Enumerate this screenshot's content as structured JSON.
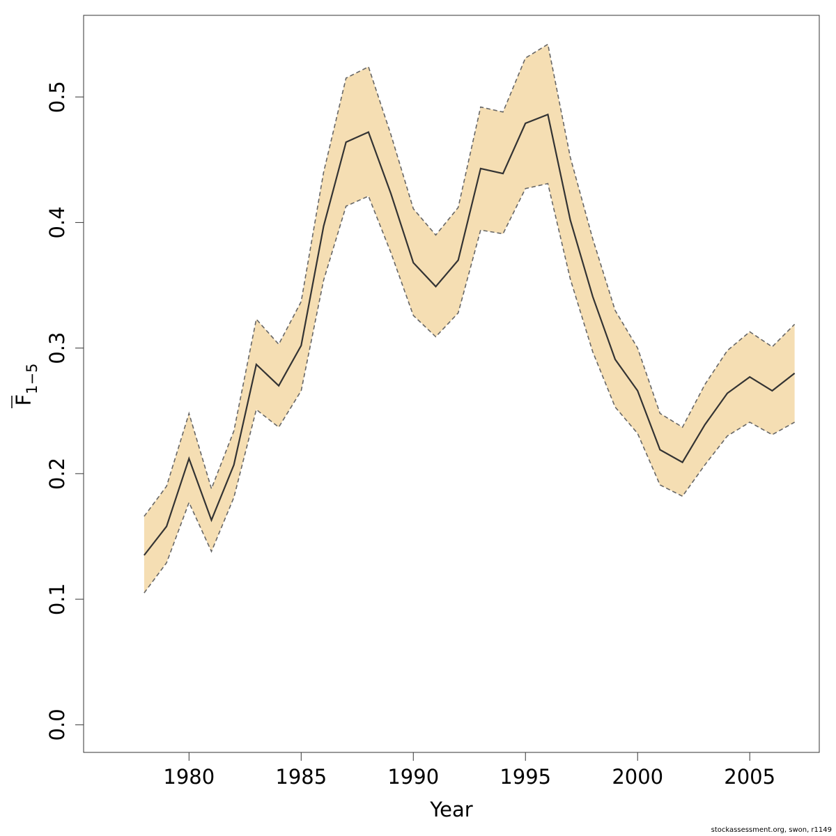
{
  "chart_data": {
    "type": "line",
    "title": "",
    "xlabel": "Year",
    "ylabel": {
      "main": "F",
      "subscript": "1−5"
    },
    "x": [
      1978,
      1979,
      1980,
      1981,
      1982,
      1983,
      1984,
      1985,
      1986,
      1987,
      1988,
      1989,
      1990,
      1991,
      1992,
      1993,
      1994,
      1995,
      1996,
      1997,
      1998,
      1999,
      2000,
      2001,
      2002,
      2003,
      2004,
      2005,
      2006,
      2007
    ],
    "series": [
      {
        "role": "estimate",
        "values": [
          0.135,
          0.158,
          0.212,
          0.163,
          0.207,
          0.287,
          0.27,
          0.302,
          0.397,
          0.464,
          0.472,
          0.423,
          0.368,
          0.349,
          0.37,
          0.443,
          0.439,
          0.479,
          0.486,
          0.402,
          0.341,
          0.291,
          0.266,
          0.219,
          0.209,
          0.239,
          0.264,
          0.277,
          0.266,
          0.28
        ]
      },
      {
        "role": "upper",
        "values": [
          0.166,
          0.19,
          0.248,
          0.188,
          0.234,
          0.323,
          0.303,
          0.337,
          0.44,
          0.515,
          0.524,
          0.47,
          0.411,
          0.39,
          0.412,
          0.492,
          0.488,
          0.531,
          0.542,
          0.452,
          0.387,
          0.33,
          0.3,
          0.248,
          0.237,
          0.271,
          0.298,
          0.313,
          0.301,
          0.319
        ]
      },
      {
        "role": "lower",
        "values": [
          0.105,
          0.129,
          0.177,
          0.138,
          0.181,
          0.251,
          0.237,
          0.266,
          0.354,
          0.413,
          0.421,
          0.376,
          0.326,
          0.309,
          0.328,
          0.394,
          0.391,
          0.427,
          0.431,
          0.355,
          0.297,
          0.253,
          0.232,
          0.191,
          0.182,
          0.207,
          0.23,
          0.241,
          0.231,
          0.241
        ]
      }
    ],
    "xlim": [
      1975.3,
      2008.1
    ],
    "ylim": [
      -0.022,
      0.565
    ],
    "xticks": [
      "1980",
      "1985",
      "1990",
      "1995",
      "2000",
      "2005"
    ],
    "yticks": [
      "0.0",
      "0.1",
      "0.2",
      "0.3",
      "0.4",
      "0.5"
    ],
    "band_color": "#f5deb3",
    "line_color": "#333333",
    "band_edge_color": "#666666",
    "grid": false
  },
  "footer": "stockassessment.org, swon, r1149"
}
